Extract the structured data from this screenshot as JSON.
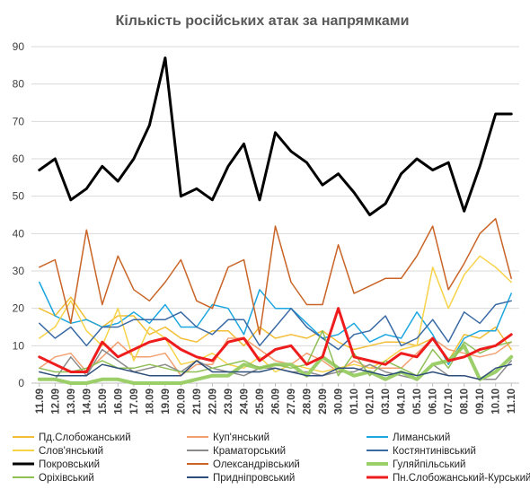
{
  "chart_data": {
    "type": "line",
    "title": "Кількість російських атак за напрямками",
    "xlabel": "",
    "ylabel": "",
    "ylim": [
      0,
      90
    ],
    "yticks": [
      0,
      10,
      20,
      30,
      40,
      50,
      60,
      70,
      80,
      90
    ],
    "grid": true,
    "legend_position": "bottom",
    "x": [
      "11.09",
      "12.09",
      "13.09",
      "14.09",
      "15.09",
      "16.09",
      "17.09",
      "18.09",
      "19.09",
      "20.09",
      "21.09",
      "22.09",
      "23.09",
      "24.09",
      "25.09",
      "26.09",
      "27.09",
      "28.09",
      "29.09",
      "30.09",
      "01.10",
      "02.10",
      "03.10",
      "04.10",
      "05.10",
      "06.10",
      "07.10",
      "08.10",
      "09.10",
      "10.10",
      "11.10"
    ],
    "series": [
      {
        "name": "Пд.Слобожанський",
        "color": "#f2be35",
        "width": 1.5,
        "values": [
          20,
          18,
          23,
          17,
          15,
          18,
          18,
          13,
          15,
          12,
          11,
          14,
          14,
          10,
          15,
          12,
          13,
          12,
          14,
          11,
          9,
          10,
          11,
          11,
          10,
          12,
          6,
          13,
          12,
          15,
          9
        ]
      },
      {
        "name": "Куп'янський",
        "color": "#f2a070",
        "width": 1.5,
        "values": [
          4,
          7,
          8,
          3,
          7,
          11,
          7,
          7,
          8,
          2,
          5,
          5,
          12,
          12,
          9,
          6,
          5,
          8,
          6,
          3,
          6,
          4,
          4,
          4,
          8,
          12,
          9,
          8,
          7,
          8,
          11
        ]
      },
      {
        "name": "Лиманський",
        "color": "#1ba6e0",
        "width": 1.5,
        "values": [
          27,
          18,
          16,
          17,
          15,
          16,
          19,
          16,
          21,
          15,
          15,
          21,
          20,
          13,
          25,
          20,
          20,
          16,
          12,
          13,
          16,
          11,
          13,
          12,
          19,
          13,
          5,
          12,
          14,
          14,
          24
        ]
      },
      {
        "name": "Слов'янський",
        "color": "#f7d34a",
        "width": 1.5,
        "values": [
          12,
          15,
          22,
          14,
          10,
          20,
          6,
          15,
          12,
          5,
          6,
          8,
          5,
          4,
          7,
          3,
          5,
          4,
          3,
          4,
          5,
          4,
          6,
          9,
          10,
          31,
          20,
          29,
          34,
          31,
          27
        ]
      },
      {
        "name": "Краматорський",
        "color": "#8a8a8a",
        "width": 1.5,
        "values": [
          1,
          1,
          7,
          2,
          9,
          6,
          3,
          4,
          5,
          3,
          6,
          4,
          3,
          2,
          4,
          4,
          3,
          3,
          2,
          3,
          3,
          5,
          3,
          2,
          1,
          5,
          2,
          2,
          1,
          1,
          6
        ]
      },
      {
        "name": "Костянтинівський",
        "color": "#3a6aa5",
        "width": 1.5,
        "values": [
          16,
          12,
          15,
          10,
          15,
          15,
          17,
          17,
          17,
          19,
          15,
          13,
          17,
          17,
          10,
          15,
          20,
          15,
          12,
          9,
          13,
          14,
          18,
          10,
          12,
          17,
          11,
          19,
          16,
          21,
          22
        ]
      },
      {
        "name": "Покровський",
        "color": "#000000",
        "width": 3,
        "values": [
          57,
          60,
          49,
          52,
          58,
          54,
          60,
          69,
          87,
          50,
          52,
          49,
          58,
          64,
          49,
          67,
          62,
          59,
          53,
          56,
          51,
          45,
          48,
          56,
          60,
          57,
          59,
          46,
          58,
          72,
          72
        ]
      },
      {
        "name": "Олександрівський",
        "color": "#c96426",
        "width": 1.5,
        "values": [
          31,
          33,
          16,
          41,
          21,
          34,
          25,
          22,
          27,
          33,
          22,
          20,
          31,
          33,
          13,
          42,
          27,
          21,
          21,
          37,
          24,
          26,
          28,
          28,
          34,
          42,
          25,
          32,
          40,
          44,
          28
        ]
      },
      {
        "name": "Гуляйпільський",
        "color": "#9ccf6a",
        "width": 4,
        "values": [
          1,
          1,
          0,
          0,
          1,
          1,
          0,
          0,
          0,
          0,
          1,
          2,
          2,
          5,
          4,
          5,
          5,
          2,
          7,
          4,
          2,
          3,
          1,
          3,
          1,
          5,
          6,
          10,
          1,
          3,
          7
        ]
      },
      {
        "name": "Оріхівський",
        "color": "#8fbf55",
        "width": 1.5,
        "values": [
          4,
          3,
          3,
          4,
          6,
          4,
          4,
          5,
          4,
          3,
          3,
          4,
          5,
          6,
          4,
          5,
          4,
          5,
          14,
          2,
          8,
          2,
          6,
          4,
          2,
          9,
          4,
          11,
          8,
          10,
          11
        ]
      },
      {
        "name": "Придніпровський",
        "color": "#2d4d7a",
        "width": 1.5,
        "values": [
          3,
          2,
          2,
          2,
          5,
          4,
          3,
          2,
          2,
          2,
          6,
          3,
          3,
          3,
          3,
          4,
          3,
          2,
          2,
          4,
          4,
          3,
          2,
          3,
          2,
          3,
          2,
          2,
          1,
          4,
          5
        ]
      },
      {
        "name": "Пн.Слобожанський-Курський",
        "color": "#ee1c1c",
        "width": 3,
        "values": [
          7,
          5,
          3,
          3,
          11,
          7,
          9,
          11,
          12,
          9,
          7,
          6,
          11,
          12,
          6,
          9,
          10,
          5,
          7,
          20,
          7,
          6,
          5,
          8,
          7,
          12,
          6,
          7,
          9,
          10,
          13
        ]
      }
    ]
  }
}
